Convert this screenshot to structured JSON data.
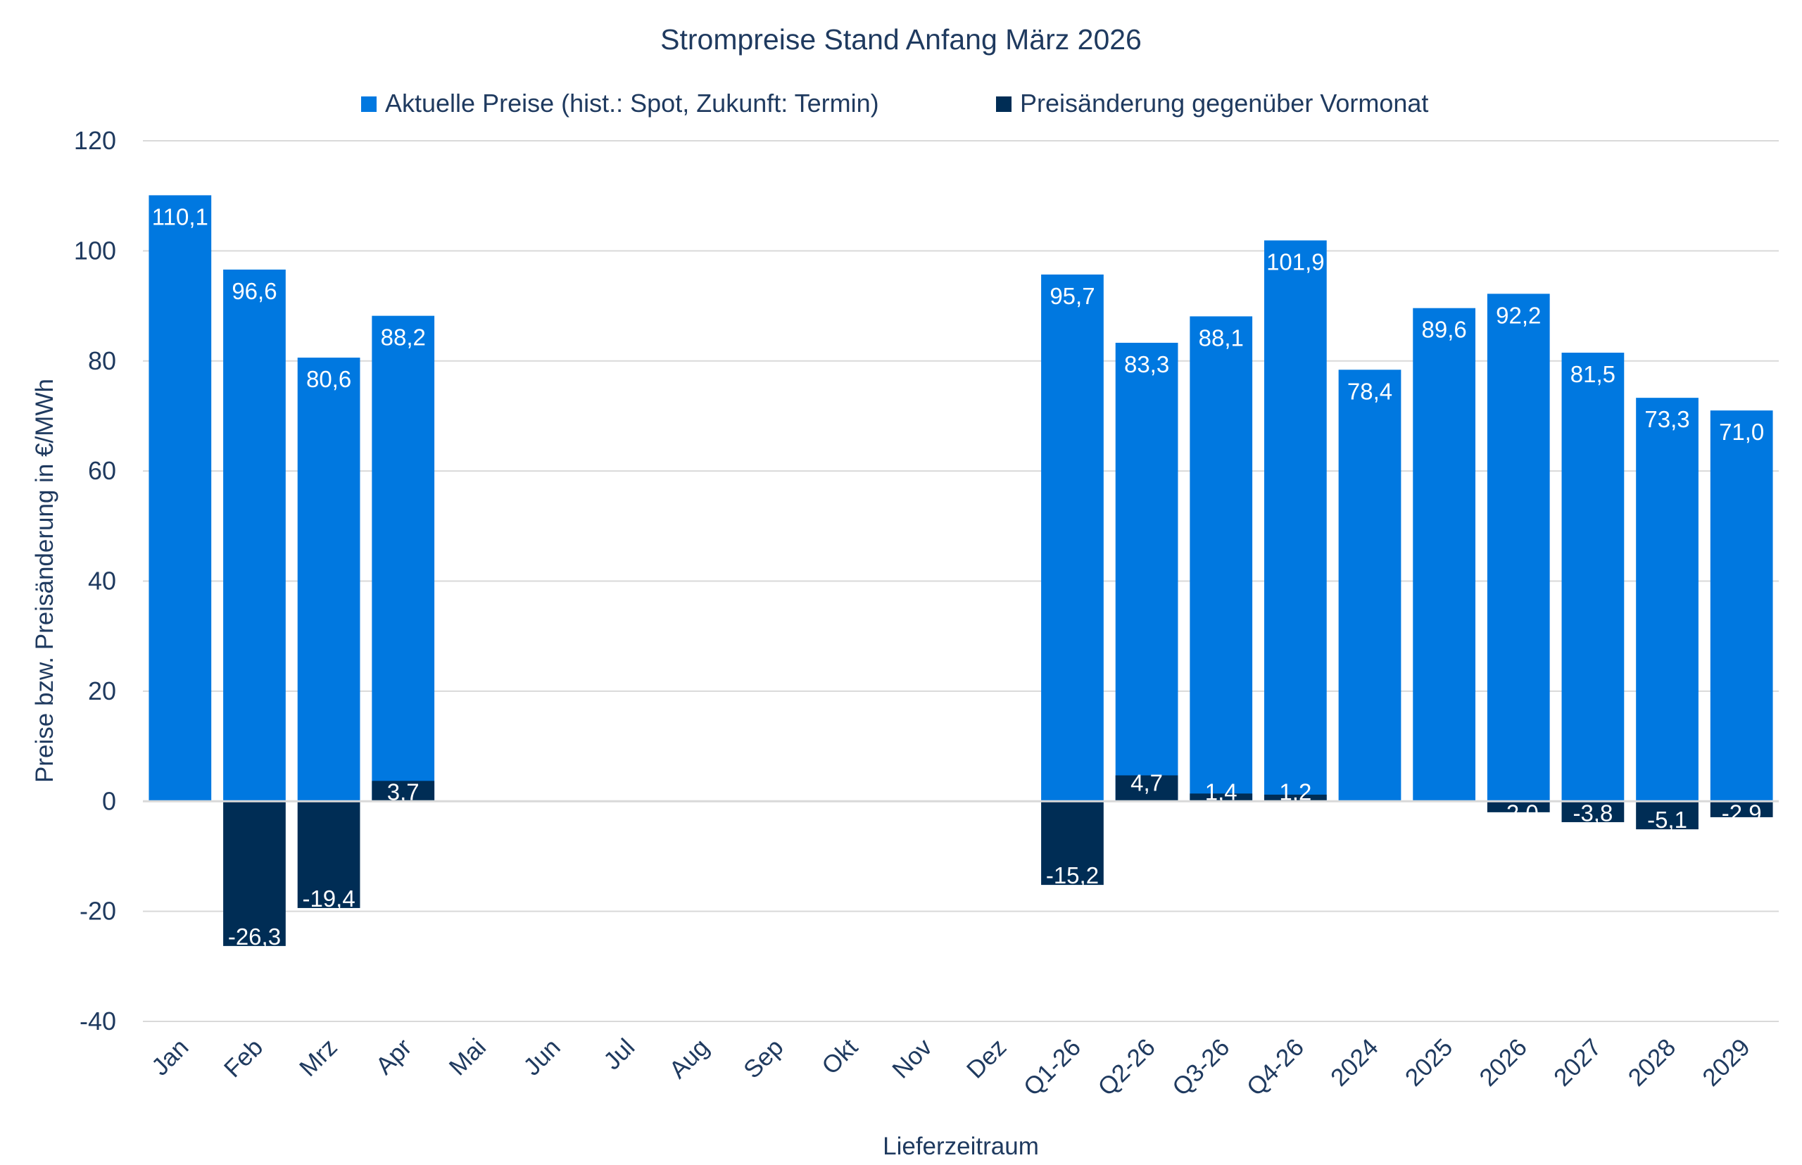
{
  "chart_data": {
    "type": "bar",
    "title": "Strompreise Stand Anfang März 2026",
    "xlabel": "Lieferzeitraum",
    "ylabel": "Preise bzw. Preisänderung in €/MWh",
    "ylim": [
      -40,
      120
    ],
    "yticks": [
      -40,
      -20,
      0,
      20,
      40,
      60,
      80,
      100,
      120
    ],
    "grid": true,
    "legend_position": "top-center",
    "categories": [
      "Jan",
      "Feb",
      "Mrz",
      "Apr",
      "Mai",
      "Jun",
      "Jul",
      "Aug",
      "Sep",
      "Okt",
      "Nov",
      "Dez",
      "Q1-26",
      "Q2-26",
      "Q3-26",
      "Q4-26",
      "2024",
      "2025",
      "2026",
      "2027",
      "2028",
      "2029"
    ],
    "series": [
      {
        "name": "Aktuelle Preise (hist.: Spot, Zukunft: Termin)",
        "color": "#0078e0",
        "values": [
          110.1,
          96.6,
          80.6,
          88.2,
          null,
          null,
          null,
          null,
          null,
          null,
          null,
          null,
          95.7,
          83.3,
          88.1,
          101.9,
          78.4,
          89.6,
          92.2,
          81.5,
          73.3,
          71.0
        ]
      },
      {
        "name": "Preisänderung gegenüber Vormonat",
        "color": "#002d55",
        "values": [
          null,
          -26.3,
          -19.4,
          3.7,
          null,
          null,
          null,
          null,
          null,
          null,
          null,
          null,
          -15.2,
          4.7,
          1.4,
          1.2,
          null,
          null,
          -2.0,
          -3.8,
          -5.1,
          -2.9
        ]
      }
    ]
  }
}
